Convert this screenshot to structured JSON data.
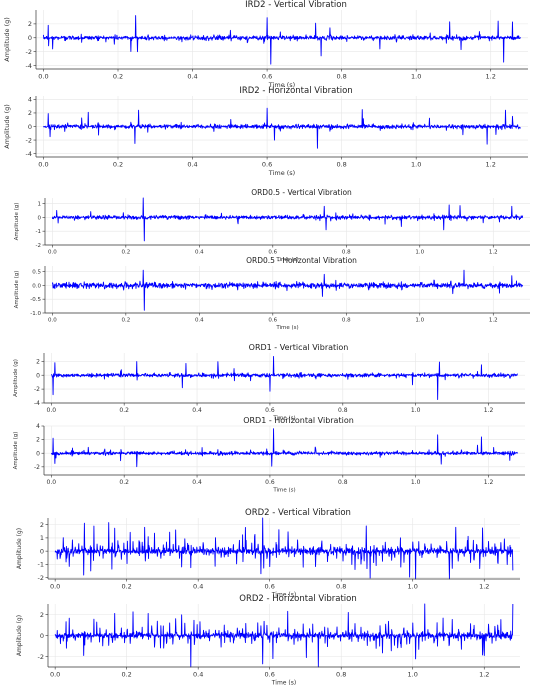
{
  "chart_data": [
    {
      "type": "line",
      "title": "IRD2 - Vertical Vibration",
      "xlabel": "Time (s)",
      "ylabel": "Amplitude (g)",
      "xlim": [
        -0.02,
        1.3
      ],
      "ylim": [
        -4.5,
        4
      ],
      "xticks": [
        0.0,
        0.2,
        0.4,
        0.6,
        0.8,
        1.0,
        1.2
      ],
      "yticks": [
        -4,
        -2,
        0,
        2
      ],
      "grid": true,
      "color": "#0000ff",
      "series": [
        {
          "noise": 0.15,
          "spacing": 0.0445,
          "start": 0.012,
          "burst": 1.4,
          "spikes": [
            [
              0.013,
              1.8
            ],
            [
              0.025,
              -1.6
            ],
            [
              0.247,
              3.2
            ],
            [
              0.252,
              -2.0
            ],
            [
              0.6,
              2.9
            ],
            [
              0.61,
              -3.8
            ],
            [
              0.73,
              2.1
            ],
            [
              0.745,
              -2.6
            ],
            [
              1.09,
              2.3
            ],
            [
              1.12,
              -1.7
            ],
            [
              1.22,
              2.4
            ],
            [
              1.235,
              -3.5
            ]
          ]
        }
      ]
    },
    {
      "type": "line",
      "title": "IRD2 - Horizontal Vibration",
      "xlabel": "Time (s)",
      "ylabel": "Amplitude (g)",
      "xlim": [
        -0.02,
        1.3
      ],
      "ylim": [
        -4.5,
        4.5
      ],
      "xticks": [
        0.0,
        0.2,
        0.4,
        0.6,
        0.8,
        1.0,
        1.2
      ],
      "yticks": [
        -4,
        -2,
        0,
        2,
        4
      ],
      "grid": true,
      "color": "#0000ff",
      "series": [
        {
          "noise": 0.15,
          "spacing": 0.0445,
          "start": 0.012,
          "burst": 1.3,
          "spikes": [
            [
              0.013,
              1.9
            ],
            [
              0.018,
              -1.5
            ],
            [
              0.12,
              2.1
            ],
            [
              0.255,
              2.4
            ],
            [
              0.245,
              -2.5
            ],
            [
              0.6,
              2.7
            ],
            [
              0.62,
              -2.0
            ],
            [
              0.735,
              -3.2
            ],
            [
              0.855,
              2.5
            ],
            [
              1.19,
              -2.6
            ],
            [
              1.24,
              2.4
            ]
          ]
        }
      ]
    },
    {
      "type": "line",
      "title": "ORD0.5 - Vertical Vibration",
      "xlabel": "Time (s)",
      "ylabel": "Amplitude (g)",
      "xlim": [
        -0.02,
        1.3
      ],
      "ylim": [
        -2,
        1.4
      ],
      "xticks": [
        0.0,
        0.2,
        0.4,
        0.6,
        0.8,
        1.0,
        1.2
      ],
      "yticks": [
        -2,
        -1,
        0,
        1
      ],
      "grid": true,
      "color": "#0000ff",
      "series": [
        {
          "noise": 0.07,
          "spacing": 0.0445,
          "start": 0.015,
          "burst": 0.45,
          "spikes": [
            [
              0.012,
              0.5
            ],
            [
              0.247,
              1.5
            ],
            [
              0.25,
              -1.7
            ],
            [
              0.74,
              0.8
            ],
            [
              0.745,
              -0.9
            ],
            [
              1.065,
              -0.9
            ],
            [
              1.08,
              0.9
            ],
            [
              1.11,
              0.85
            ],
            [
              1.25,
              0.8
            ]
          ]
        }
      ]
    },
    {
      "type": "line",
      "title": "ORD0.5 - Horizontal Vibration",
      "xlabel": "Time (s)",
      "ylabel": "Amplitude (g)",
      "xlim": [
        -0.02,
        1.3
      ],
      "ylim": [
        -1.0,
        0.7
      ],
      "xticks": [
        0.0,
        0.2,
        0.4,
        0.6,
        0.8,
        1.0,
        1.2
      ],
      "yticks": [
        -1.0,
        -0.5,
        0.0,
        0.5
      ],
      "grid": true,
      "color": "#0000ff",
      "series": [
        {
          "noise": 0.05,
          "spacing": 0.0445,
          "start": 0.015,
          "burst": 0.22,
          "spikes": [
            [
              0.247,
              0.55
            ],
            [
              0.25,
              -0.9
            ],
            [
              0.74,
              0.4
            ],
            [
              0.735,
              -0.4
            ],
            [
              1.12,
              0.55
            ],
            [
              1.09,
              -0.3
            ],
            [
              1.25,
              0.35
            ]
          ]
        }
      ]
    },
    {
      "type": "line",
      "title": "ORD1 - Vertical Vibration",
      "xlabel": "Time (s)",
      "ylabel": "Amplitude (g)",
      "xlim": [
        -0.02,
        1.3
      ],
      "ylim": [
        -4,
        3.2
      ],
      "xticks": [
        0.0,
        0.2,
        0.4,
        0.6,
        0.8,
        1.0,
        1.2
      ],
      "yticks": [
        -4,
        -2,
        0,
        2
      ],
      "grid": true,
      "color": "#0000ff",
      "series": [
        {
          "noise": 0.13,
          "spacing": 0.0445,
          "start": 0.012,
          "burst": 1.3,
          "spikes": [
            [
              0.005,
              -2.8
            ],
            [
              0.01,
              1.8
            ],
            [
              0.37,
              1.7
            ],
            [
              0.36,
              -1.8
            ],
            [
              0.61,
              2.7
            ],
            [
              0.6,
              -2.3
            ],
            [
              1.06,
              -3.5
            ],
            [
              1.065,
              1.9
            ],
            [
              1.18,
              1.5
            ]
          ]
        }
      ]
    },
    {
      "type": "line",
      "title": "ORD1 - Horizontal Vibration",
      "xlabel": "Time (s)",
      "ylabel": "Amplitude (g)",
      "xlim": [
        -0.02,
        1.3
      ],
      "ylim": [
        -3.2,
        4
      ],
      "xticks": [
        0.0,
        0.2,
        0.4,
        0.6,
        0.8,
        1.0,
        1.2
      ],
      "yticks": [
        -2,
        0,
        2,
        4
      ],
      "grid": true,
      "color": "#0000ff",
      "series": [
        {
          "noise": 0.12,
          "spacing": 0.0445,
          "start": 0.012,
          "burst": 1.0,
          "spikes": [
            [
              0.005,
              2.2
            ],
            [
              0.01,
              -1.5
            ],
            [
              0.61,
              3.6
            ],
            [
              0.605,
              -1.9
            ],
            [
              1.06,
              2.7
            ],
            [
              1.18,
              2.4
            ],
            [
              1.07,
              -1.6
            ]
          ]
        }
      ]
    },
    {
      "type": "line",
      "title": "ORD2 - Vertical Vibration",
      "xlabel": "Time (s)",
      "ylabel": "Amplitude (g)",
      "xlim": [
        -0.02,
        1.3
      ],
      "ylim": [
        -2.1,
        2.5
      ],
      "xticks": [
        0.0,
        0.2,
        0.4,
        0.6,
        0.8,
        1.0,
        1.2
      ],
      "yticks": [
        -2,
        -1,
        0,
        1,
        2
      ],
      "grid": true,
      "color": "#0000ff",
      "series": [
        {
          "noise": 0.1,
          "spacing": 0.0085,
          "start": 0.005,
          "burst": 1.3,
          "spikes": [
            [
              0.58,
              2.5
            ],
            [
              0.575,
              -1.7
            ],
            [
              0.08,
              -1.8
            ],
            [
              0.25,
              1.8
            ],
            [
              1.12,
              1.8
            ],
            [
              0.87,
              1.9
            ]
          ]
        }
      ]
    },
    {
      "type": "line",
      "title": "ORD2 - Horizontal Vibration",
      "xlabel": "Time (s)",
      "ylabel": "Amplitude (g)",
      "xlim": [
        -0.02,
        1.3
      ],
      "ylim": [
        -3,
        3
      ],
      "xticks": [
        0.0,
        0.2,
        0.4,
        0.6,
        0.8,
        1.0,
        1.2
      ],
      "yticks": [
        -2,
        0,
        2
      ],
      "grid": true,
      "color": "#0000ff",
      "series": [
        {
          "noise": 0.12,
          "spacing": 0.0085,
          "start": 0.005,
          "burst": 1.5,
          "spikes": [
            [
              0.58,
              2.8
            ],
            [
              0.58,
              -2.7
            ],
            [
              0.08,
              -1.9
            ],
            [
              0.26,
              2.1
            ],
            [
              0.65,
              2.3
            ],
            [
              1.2,
              -1.9
            ],
            [
              0.82,
              2.2
            ]
          ]
        }
      ]
    }
  ]
}
